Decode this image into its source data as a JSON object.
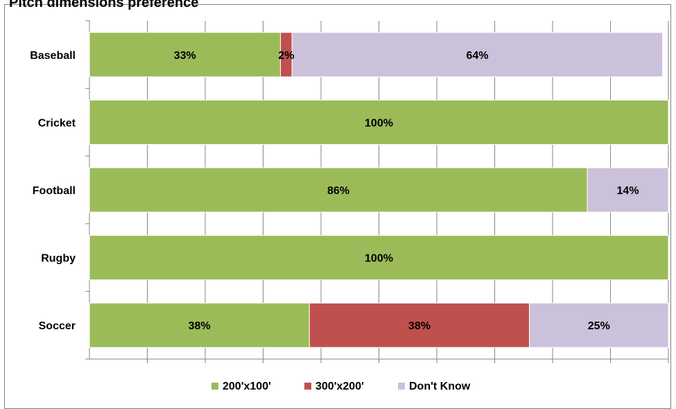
{
  "chart_data": {
    "type": "bar",
    "orientation": "horizontal",
    "stacked": true,
    "normalized": true,
    "title": "Pitch dimensions preference",
    "categories": [
      "Baseball",
      "Cricket",
      "Football",
      "Rugby",
      "Soccer"
    ],
    "series": [
      {
        "name": "200'x100'",
        "color": "#9bbb59",
        "values": [
          33,
          100,
          86,
          100,
          38
        ]
      },
      {
        "name": "300'x200'",
        "color": "#c0504d",
        "values": [
          2,
          0,
          0,
          0,
          38
        ]
      },
      {
        "name": "Don't Know",
        "color": "#ccc1da",
        "values": [
          64,
          0,
          14,
          0,
          25
        ]
      }
    ],
    "data_labels": [
      [
        "33%",
        "100%",
        "86%",
        "100%",
        "38%"
      ],
      [
        "2%",
        "",
        "",
        "",
        "38%"
      ],
      [
        "64%",
        "",
        "14%",
        "",
        "25%"
      ]
    ],
    "xlim": [
      0,
      100
    ],
    "x_gridlines": true,
    "x_tick_labels_shown": false,
    "legend_position": "bottom"
  }
}
